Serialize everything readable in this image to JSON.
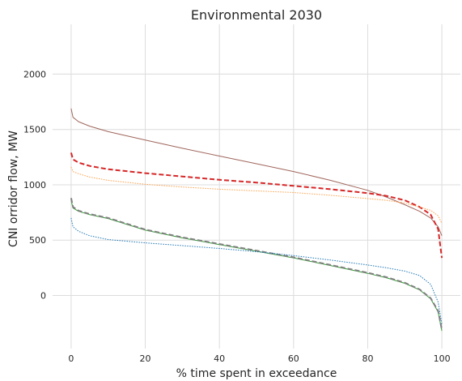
{
  "chart_data": {
    "type": "line",
    "title": "Environmental 2030",
    "xlabel": "% time spent in exceedance",
    "ylabel": "CNI orridor flow, MW",
    "xlim": [
      -5,
      105
    ],
    "ylim": [
      -480,
      2450
    ],
    "x_ticks": [
      0,
      20,
      40,
      60,
      80,
      100
    ],
    "y_ticks": [
      0,
      500,
      1000,
      1500,
      2000
    ],
    "grid": true,
    "legend": "none",
    "background": "#ffffff",
    "grid_color": "#dcdcdc",
    "series": [
      {
        "color": "#a0665c",
        "line_style": "solid",
        "points": [
          [
            0,
            1690
          ],
          [
            0.5,
            1610
          ],
          [
            2,
            1570
          ],
          [
            5,
            1530
          ],
          [
            10,
            1480
          ],
          [
            20,
            1405
          ],
          [
            30,
            1330
          ],
          [
            40,
            1260
          ],
          [
            50,
            1190
          ],
          [
            60,
            1120
          ],
          [
            70,
            1040
          ],
          [
            80,
            950
          ],
          [
            85,
            890
          ],
          [
            90,
            820
          ],
          [
            94,
            760
          ],
          [
            97,
            700
          ],
          [
            99,
            620
          ],
          [
            100,
            540
          ]
        ]
      },
      {
        "color": "#d62728",
        "line_style": "dashed",
        "points": [
          [
            0,
            1290
          ],
          [
            0.5,
            1230
          ],
          [
            2,
            1200
          ],
          [
            5,
            1170
          ],
          [
            10,
            1140
          ],
          [
            20,
            1105
          ],
          [
            30,
            1075
          ],
          [
            40,
            1045
          ],
          [
            50,
            1020
          ],
          [
            60,
            990
          ],
          [
            70,
            960
          ],
          [
            80,
            925
          ],
          [
            85,
            900
          ],
          [
            90,
            860
          ],
          [
            94,
            800
          ],
          [
            97,
            730
          ],
          [
            99,
            600
          ],
          [
            100,
            340
          ]
        ]
      },
      {
        "color": "#ff9f4a",
        "line_style": "dotted",
        "points": [
          [
            0,
            1160
          ],
          [
            0.5,
            1120
          ],
          [
            2,
            1100
          ],
          [
            5,
            1070
          ],
          [
            10,
            1040
          ],
          [
            20,
            1005
          ],
          [
            30,
            980
          ],
          [
            40,
            960
          ],
          [
            50,
            945
          ],
          [
            60,
            930
          ],
          [
            70,
            905
          ],
          [
            80,
            875
          ],
          [
            85,
            860
          ],
          [
            90,
            835
          ],
          [
            94,
            800
          ],
          [
            97,
            770
          ],
          [
            99,
            720
          ],
          [
            100,
            650
          ]
        ]
      },
      {
        "color": "#2ca02c",
        "line_style": "solid",
        "points": [
          [
            0,
            860
          ],
          [
            0.5,
            790
          ],
          [
            2,
            760
          ],
          [
            5,
            730
          ],
          [
            10,
            695
          ],
          [
            20,
            590
          ],
          [
            30,
            520
          ],
          [
            40,
            460
          ],
          [
            50,
            400
          ],
          [
            60,
            340
          ],
          [
            70,
            270
          ],
          [
            80,
            200
          ],
          [
            85,
            160
          ],
          [
            90,
            110
          ],
          [
            94,
            50
          ],
          [
            97,
            -30
          ],
          [
            99,
            -150
          ],
          [
            100,
            -320
          ]
        ]
      },
      {
        "color": "#7f7f7f",
        "line_style": "dashed",
        "points": [
          [
            0,
            880
          ],
          [
            0.5,
            800
          ],
          [
            2,
            765
          ],
          [
            5,
            735
          ],
          [
            10,
            700
          ],
          [
            20,
            595
          ],
          [
            30,
            525
          ],
          [
            40,
            465
          ],
          [
            50,
            405
          ],
          [
            60,
            345
          ],
          [
            70,
            275
          ],
          [
            80,
            205
          ],
          [
            85,
            165
          ],
          [
            90,
            115
          ],
          [
            94,
            55
          ],
          [
            97,
            -25
          ],
          [
            99,
            -140
          ],
          [
            100,
            -310
          ]
        ]
      },
      {
        "color": "#1f77b4",
        "line_style": "dotted",
        "points": [
          [
            0,
            700
          ],
          [
            0.5,
            620
          ],
          [
            2,
            580
          ],
          [
            5,
            540
          ],
          [
            10,
            505
          ],
          [
            20,
            475
          ],
          [
            30,
            450
          ],
          [
            40,
            425
          ],
          [
            50,
            395
          ],
          [
            60,
            360
          ],
          [
            70,
            320
          ],
          [
            80,
            275
          ],
          [
            85,
            250
          ],
          [
            90,
            220
          ],
          [
            94,
            180
          ],
          [
            97,
            100
          ],
          [
            99,
            -60
          ],
          [
            100,
            -260
          ]
        ]
      }
    ]
  }
}
